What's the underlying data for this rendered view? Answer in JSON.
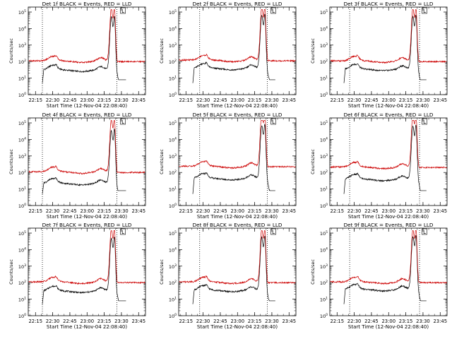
{
  "chart_data": [
    {
      "type": "line",
      "title": "Det 1f BLACK = Events, RED = LLD",
      "flag": "L",
      "xlabel": "Start Time (12-Nov-04 22:08:40)",
      "ylabel": "Counts/sec",
      "series": [
        {
          "color": "#000000"
        },
        {
          "color": "#cc0000"
        }
      ],
      "dotted_lines": [
        "22:21",
        "23:26"
      ],
      "black_end": "23:34",
      "red_peak": 2.5,
      "black_base": 1.5,
      "red_base": 2.05,
      "xticks": [
        "22:15",
        "22:30",
        "22:45",
        "23:00",
        "23:15",
        "23:30",
        "23:45"
      ],
      "yticks": [
        "10^0",
        "10^1",
        "10^2",
        "10^3",
        "10^4",
        "10^5"
      ],
      "ylim_log10": [
        0,
        5.3
      ],
      "xlim": [
        "22:08:40",
        "23:51"
      ]
    },
    {
      "type": "line",
      "title": "Det 2f BLACK = Events, RED = LLD",
      "flag": "L",
      "xlabel": "Start Time (12-Nov-04 22:08:40)",
      "ylabel": "Counts/sec",
      "series": [
        {
          "color": "#000000"
        },
        {
          "color": "#cc0000"
        }
      ],
      "dotted_lines": [
        "22:27",
        "23:26"
      ],
      "black_end": "23:33",
      "red_peak": 2.6,
      "black_base": 1.6,
      "red_base": 2.1,
      "xticks": [
        "22:15",
        "22:30",
        "22:45",
        "23:00",
        "23:15",
        "23:30",
        "23:45"
      ],
      "yticks": [
        "10^0",
        "10^1",
        "10^2",
        "10^3",
        "10^4",
        "10^5"
      ],
      "ylim_log10": [
        0,
        5.3
      ],
      "xlim": [
        "22:08:40",
        "23:51"
      ]
    },
    {
      "type": "line",
      "title": "Det 3f BLACK = Events, RED = LLD",
      "flag": "L",
      "xlabel": "Start Time (12-Nov-04 22:08:40)",
      "ylabel": "Counts/sec",
      "series": [
        {
          "color": "#000000"
        },
        {
          "color": "#cc0000"
        }
      ],
      "dotted_lines": [
        "22:26",
        "23:27"
      ],
      "black_end": "23:33",
      "red_peak": 2.55,
      "black_base": 1.55,
      "red_base": 2.05,
      "xticks": [
        "22:15",
        "22:30",
        "22:45",
        "23:00",
        "23:15",
        "23:30",
        "23:45"
      ],
      "yticks": [
        "10^0",
        "10^1",
        "10^2",
        "10^3",
        "10^4",
        "10^5"
      ],
      "ylim_log10": [
        0,
        5.3
      ],
      "xlim": [
        "22:08:40",
        "23:51"
      ]
    },
    {
      "type": "line",
      "title": "Det 4f BLACK = Events, RED = LLD",
      "flag": "L",
      "xlabel": "Start Time (12-Nov-04 22:08:40)",
      "ylabel": "Counts/sec",
      "series": [
        {
          "color": "#000000"
        },
        {
          "color": "#cc0000"
        }
      ],
      "dotted_lines": [
        "22:21",
        "23:26"
      ],
      "black_end": "23:34",
      "red_peak": 2.55,
      "black_base": 1.35,
      "red_base": 2.05,
      "xticks": [
        "22:15",
        "22:30",
        "22:45",
        "23:00",
        "23:15",
        "23:30",
        "23:45"
      ],
      "yticks": [
        "10^0",
        "10^1",
        "10^2",
        "10^3",
        "10^4",
        "10^5"
      ],
      "ylim_log10": [
        0,
        5.3
      ],
      "xlim": [
        "22:08:40",
        "23:51"
      ]
    },
    {
      "type": "line",
      "title": "Det 5f BLACK = Events, RED = LLD",
      "flag": "L",
      "xlabel": "Start Time (12-Nov-04 22:08:40)",
      "ylabel": "Counts/sec",
      "series": [
        {
          "color": "#000000"
        },
        {
          "color": "#cc0000"
        }
      ],
      "dotted_lines": [
        "22:27",
        "23:26"
      ],
      "black_end": "23:33",
      "red_peak": 2.55,
      "black_base": 1.65,
      "red_base": 2.4,
      "xticks": [
        "22:15",
        "22:30",
        "22:45",
        "23:00",
        "23:15",
        "23:30",
        "23:45"
      ],
      "yticks": [
        "10^0",
        "10^1",
        "10^2",
        "10^3",
        "10^4",
        "10^5"
      ],
      "ylim_log10": [
        0,
        5.3
      ],
      "xlim": [
        "22:08:40",
        "23:51"
      ]
    },
    {
      "type": "line",
      "title": "Det 6f BLACK = Events, RED = LLD",
      "flag": "L",
      "xlabel": "Start Time (12-Nov-04 22:08:40)",
      "ylabel": "Counts/sec",
      "series": [
        {
          "color": "#000000"
        },
        {
          "color": "#cc0000"
        }
      ],
      "dotted_lines": [
        "22:26",
        "23:27"
      ],
      "black_end": "23:33",
      "red_peak": 2.55,
      "black_base": 1.6,
      "red_base": 2.35,
      "xticks": [
        "22:15",
        "22:30",
        "22:45",
        "23:00",
        "23:15",
        "23:30",
        "23:45"
      ],
      "yticks": [
        "10^0",
        "10^1",
        "10^2",
        "10^3",
        "10^4",
        "10^5"
      ],
      "ylim_log10": [
        0,
        5.3
      ],
      "xlim": [
        "22:08:40",
        "23:51"
      ]
    },
    {
      "type": "line",
      "title": "Det 7f BLACK = Events, RED = LLD",
      "flag": "L",
      "xlabel": "Start Time (12-Nov-04 22:08:40)",
      "ylabel": "Counts/sec",
      "series": [
        {
          "color": "#000000"
        },
        {
          "color": "#cc0000"
        }
      ],
      "dotted_lines": [
        "22:21",
        "23:26"
      ],
      "black_end": "23:34",
      "red_peak": 2.3,
      "black_base": 1.5,
      "red_base": 2.05,
      "xticks": [
        "22:15",
        "22:30",
        "22:45",
        "23:00",
        "23:15",
        "23:30",
        "23:45"
      ],
      "yticks": [
        "10^0",
        "10^1",
        "10^2",
        "10^3",
        "10^4",
        "10^5"
      ],
      "ylim_log10": [
        0,
        5.3
      ],
      "xlim": [
        "22:08:40",
        "23:51"
      ]
    },
    {
      "type": "line",
      "title": "Det 8f BLACK = Events, RED = LLD",
      "flag": "L",
      "xlabel": "Start Time (12-Nov-04 22:08:40)",
      "ylabel": "Counts/sec",
      "series": [
        {
          "color": "#000000"
        },
        {
          "color": "#cc0000"
        }
      ],
      "dotted_lines": [
        "22:27",
        "23:26"
      ],
      "black_end": "23:33",
      "red_peak": 2.45,
      "black_base": 1.55,
      "red_base": 2.05,
      "xticks": [
        "22:15",
        "22:30",
        "22:45",
        "23:00",
        "23:15",
        "23:30",
        "23:45"
      ],
      "yticks": [
        "10^0",
        "10^1",
        "10^2",
        "10^3",
        "10^4",
        "10^5"
      ],
      "ylim_log10": [
        0,
        5.3
      ],
      "xlim": [
        "22:08:40",
        "23:51"
      ]
    },
    {
      "type": "line",
      "title": "Det 9f BLACK = Events, RED = LLD",
      "flag": "L",
      "xlabel": "Start Time (12-Nov-04 22:08:40)",
      "ylabel": "Counts/sec",
      "series": [
        {
          "color": "#000000"
        },
        {
          "color": "#cc0000"
        }
      ],
      "dotted_lines": [
        "22:26",
        "23:27"
      ],
      "black_end": "23:33",
      "red_peak": 2.5,
      "black_base": 1.6,
      "red_base": 2.05,
      "xticks": [
        "22:15",
        "22:30",
        "22:45",
        "23:00",
        "23:15",
        "23:30",
        "23:45"
      ],
      "yticks": [
        "10^0",
        "10^1",
        "10^2",
        "10^3",
        "10^4",
        "10^5"
      ],
      "ylim_log10": [
        0,
        5.3
      ],
      "xlim": [
        "22:08:40",
        "23:51"
      ]
    }
  ]
}
